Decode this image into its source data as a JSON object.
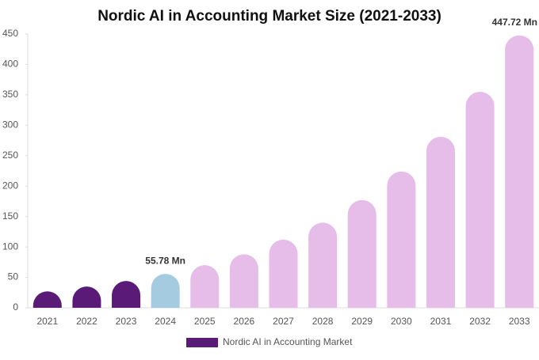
{
  "chart_data": {
    "type": "bar",
    "title": "Nordic AI in Accounting Market Size (2021-2033)",
    "categories": [
      "2021",
      "2022",
      "2023",
      "2024",
      "2025",
      "2026",
      "2027",
      "2028",
      "2029",
      "2030",
      "2031",
      "2032",
      "2033"
    ],
    "series": [
      {
        "name": "Nordic AI in Accounting Market",
        "color": "#5a1a78",
        "values": [
          27,
          35,
          44,
          55.78,
          70,
          88,
          112,
          140,
          177,
          224,
          281,
          355,
          447.72
        ],
        "value_labels": [
          null,
          null,
          null,
          "55.78 Mn",
          null,
          null,
          null,
          null,
          null,
          null,
          null,
          null,
          "447.72 Mn"
        ],
        "colors": [
          "#5a1a78",
          "#5a1a78",
          "#5a1a78",
          "#a5cbe0",
          "#e6bce8",
          "#e6bce8",
          "#e6bce8",
          "#e6bce8",
          "#e6bce8",
          "#e6bce8",
          "#e6bce8",
          "#e6bce8",
          "#e6bce8"
        ]
      }
    ],
    "ylim": [
      0,
      450
    ],
    "yticks": [
      0,
      50,
      100,
      150,
      200,
      250,
      300,
      350,
      400,
      450
    ],
    "grid": false,
    "legend": "bottom"
  }
}
